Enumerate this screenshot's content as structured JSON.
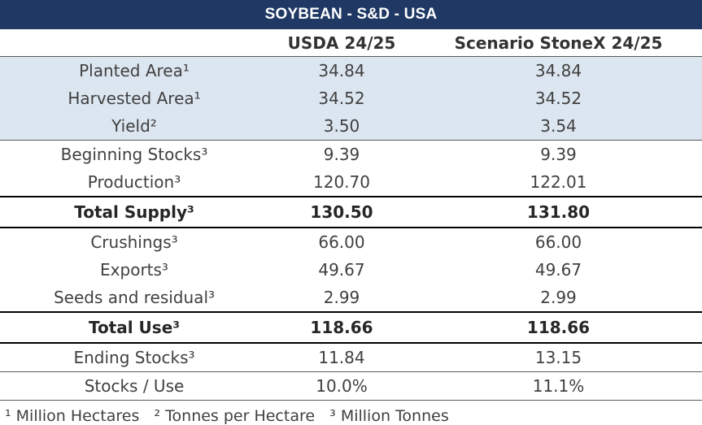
{
  "title": "SOYBEAN - S&D - USA",
  "columns": [
    "",
    "USDA 24/25",
    "Scenario StoneX 24/25"
  ],
  "rows": [
    {
      "label": "Planted Area¹",
      "usda": "34.84",
      "stonex": "34.84"
    },
    {
      "label": "Harvested Area¹",
      "usda": "34.52",
      "stonex": "34.52"
    },
    {
      "label": "Yield²",
      "usda": "3.50",
      "stonex": "3.54"
    },
    {
      "label": "Beginning Stocks³",
      "usda": "9.39",
      "stonex": "9.39"
    },
    {
      "label": "Production³",
      "usda": "120.70",
      "stonex": "122.01"
    },
    {
      "label": "Total Supply³",
      "usda": "130.50",
      "stonex": "131.80"
    },
    {
      "label": "Crushings³",
      "usda": "66.00",
      "stonex": "66.00"
    },
    {
      "label": "Exports³",
      "usda": "49.67",
      "stonex": "49.67"
    },
    {
      "label": "Seeds and residual³",
      "usda": "2.99",
      "stonex": "2.99"
    },
    {
      "label": "Total Use³",
      "usda": "118.66",
      "stonex": "118.66"
    },
    {
      "label": "Ending Stocks³",
      "usda": "11.84",
      "stonex": "13.15"
    },
    {
      "label": "Stocks / Use",
      "usda": "10.0%",
      "stonex": "11.1%"
    }
  ],
  "footnote": "¹ Million Hectares   ² Tonnes per Hectare   ³ Million Tonnes",
  "colors": {
    "header_bg": "#1f3864",
    "shade": "#dce6f0"
  }
}
